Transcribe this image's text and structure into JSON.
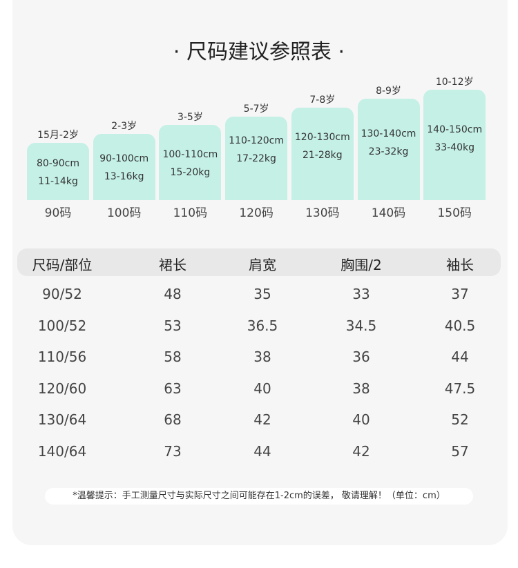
{
  "header": {
    "title": "· 尺码建议参照表 ·"
  },
  "sizes": [
    {
      "age": "15月-2岁",
      "height": "80-90cm",
      "weight": "11-14kg",
      "label": "90码"
    },
    {
      "age": "2-3岁",
      "height": "90-100cm",
      "weight": "13-16kg",
      "label": "100码"
    },
    {
      "age": "3-5岁",
      "height": "100-110cm",
      "weight": "15-20kg",
      "label": "110码"
    },
    {
      "age": "5-7岁",
      "height": "110-120cm",
      "weight": "17-22kg",
      "label": "120码"
    },
    {
      "age": "7-8岁",
      "height": "120-130cm",
      "weight": "21-28kg",
      "label": "130码"
    },
    {
      "age": "8-9岁",
      "height": "130-140cm",
      "weight": "23-32kg",
      "label": "140码"
    },
    {
      "age": "10-12岁",
      "height": "140-150cm",
      "weight": "33-40kg",
      "label": "150码"
    }
  ],
  "table": {
    "header": [
      "尺码/部位",
      "裙长",
      "肩宽",
      "胸围/2",
      "袖长"
    ],
    "rows": [
      [
        "90/52",
        "48",
        "35",
        "33",
        "37"
      ],
      [
        "100/52",
        "53",
        "36.5",
        "34.5",
        "40.5"
      ],
      [
        "110/56",
        "58",
        "38",
        "36",
        "44"
      ],
      [
        "120/60",
        "63",
        "40",
        "38",
        "47.5"
      ],
      [
        "130/64",
        "68",
        "42",
        "40",
        "52"
      ],
      [
        "140/64",
        "73",
        "44",
        "42",
        "57"
      ]
    ]
  },
  "note": "*温馨提示：手工测量尺寸与实际尺寸之间可能存在1-2cm的误差， 敬请理解！（单位：cm）"
}
